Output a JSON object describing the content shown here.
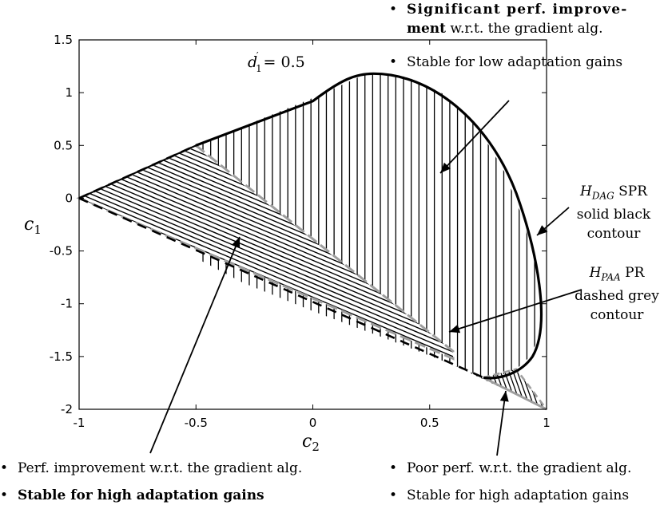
{
  "chart_data": {
    "type": "area",
    "xlabel": "c",
    "xlabel_sub": "2",
    "ylabel": "c",
    "ylabel_sub": "1",
    "xlim": [
      -1,
      1
    ],
    "ylim": [
      -2,
      1.5
    ],
    "xticks": [
      "-1",
      "-0.5",
      "0",
      "0.5",
      "1"
    ],
    "xtick_values": [
      -1,
      -0.5,
      0,
      0.5,
      1
    ],
    "yticks": [
      "-2",
      "-1.5",
      "-1",
      "-0.5",
      "0",
      "0.5",
      "1",
      "1.5"
    ],
    "ytick_values": [
      -2,
      -1.5,
      -1,
      -0.5,
      0,
      0.5,
      1,
      1.5
    ],
    "grid": false,
    "param_label": "d",
    "param_label_sub": "1",
    "param_label_value": "= 0.5",
    "regions": {
      "dag_spr_contour": {
        "style": "solid-black",
        "points": [
          [
            -1,
            0
          ],
          [
            -0.5,
            0.5
          ],
          [
            0,
            0.95
          ],
          [
            0.2,
            1.15
          ],
          [
            0.25,
            1.18
          ],
          [
            0.4,
            1.15
          ],
          [
            0.55,
            1.0
          ],
          [
            0.7,
            0.7
          ],
          [
            0.82,
            0.25
          ],
          [
            0.9,
            -0.2
          ],
          [
            0.95,
            -0.6
          ],
          [
            0.98,
            -1.0
          ],
          [
            0.97,
            -1.3
          ],
          [
            0.93,
            -1.5
          ],
          [
            0.87,
            -1.62
          ],
          [
            0.8,
            -1.68
          ],
          [
            0.73,
            -1.7
          ],
          [
            0.6,
            -1.58
          ],
          [
            0.3,
            -1.32
          ],
          [
            0,
            -1.07
          ],
          [
            -0.3,
            -0.8
          ],
          [
            -0.6,
            -0.45
          ],
          [
            -1,
            0
          ]
        ]
      },
      "paa_pr_contour": {
        "style": "dashed-grey",
        "points": [
          [
            -1,
            0
          ],
          [
            -0.5,
            0.52
          ],
          [
            -0.5,
            0.5
          ],
          [
            0.6,
            -1.42
          ],
          [
            0.6,
            -1.5
          ],
          [
            -1,
            0
          ]
        ]
      },
      "poor_region": {
        "points": [
          [
            0.73,
            -1.7
          ],
          [
            0.87,
            -1.62
          ],
          [
            1.0,
            -2.0
          ],
          [
            0.6,
            -1.58
          ]
        ]
      },
      "region_boundary_x": 0.6,
      "region_corner": [
        -0.5,
        0.5
      ]
    }
  },
  "annotations": {
    "top_right_line1_bold": "Significant perf. improve-",
    "top_right_line2_bold": "ment",
    "top_right_line2_rest": " w.r.t. the gradient alg.",
    "top_right_line3": "Stable for low adaptation gains",
    "spr_line1_math": "H",
    "spr_line1_sub": "DAG",
    "spr_line1_rest": " SPR",
    "spr_line2": "solid black",
    "spr_line3": "contour",
    "pr_line1_math": "H",
    "pr_line1_sub": "PAA",
    "pr_line1_rest": " PR",
    "pr_line2": "dashed grey",
    "pr_line3": "contour",
    "bottom_left_line1": "Perf. improvement w.r.t. the gradient alg.",
    "bottom_left_line2_bold": "Stable for high adaptation gains",
    "bottom_right_line1": "Poor perf. w.r.t. the gradient alg.",
    "bottom_right_line2": "Stable for high adaptation gains",
    "bullet": "•"
  }
}
